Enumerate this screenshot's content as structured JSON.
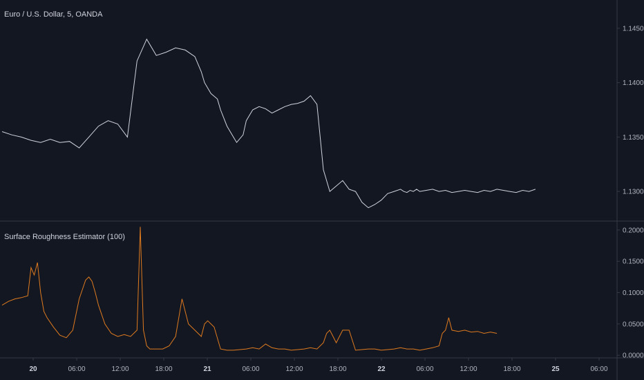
{
  "colors": {
    "background": "#131722",
    "price_line": "#d1d4dc",
    "indicator_line": "#e07b1f",
    "divider": "#363a45",
    "axis_text": "#b2b5be"
  },
  "chart_data": [
    {
      "type": "line",
      "title": "Euro / U.S. Dollar, 5, OANDA",
      "series": [
        {
          "x": [
            0,
            3,
            6,
            9,
            12,
            15,
            18,
            21,
            24,
            27,
            30,
            33,
            36,
            39,
            42,
            45,
            48,
            51,
            54,
            57,
            60,
            62,
            63,
            65,
            67,
            68,
            70,
            72,
            73,
            75,
            76,
            78,
            80,
            82,
            84,
            86,
            88,
            90,
            92,
            94,
            96,
            98,
            100,
            102,
            104,
            106,
            108,
            110,
            111,
            112,
            114,
            116,
            118,
            120,
            122,
            124,
            125,
            126,
            127,
            128,
            129,
            130,
            132,
            134,
            136,
            138,
            140,
            142,
            144,
            146,
            148,
            150,
            152,
            154,
            156,
            158,
            160,
            162,
            164,
            166
          ],
          "values": [
            1.1355,
            1.1352,
            1.135,
            1.1347,
            1.1345,
            1.1348,
            1.1345,
            1.1346,
            1.134,
            1.135,
            1.136,
            1.1365,
            1.1362,
            1.135,
            1.142,
            1.144,
            1.1425,
            1.1428,
            1.1432,
            1.143,
            1.1424,
            1.141,
            1.14,
            1.139,
            1.1385,
            1.1375,
            1.136,
            1.135,
            1.1345,
            1.1352,
            1.1365,
            1.1375,
            1.1378,
            1.1376,
            1.1372,
            1.1375,
            1.1378,
            1.138,
            1.1381,
            1.1383,
            1.1388,
            1.138,
            1.132,
            1.13,
            1.1305,
            1.131,
            1.1302,
            1.13,
            1.1295,
            1.129,
            1.1285,
            1.1288,
            1.1292,
            1.1298,
            1.13,
            1.1302,
            1.13,
            1.1299,
            1.1301,
            1.13,
            1.1302,
            1.13,
            1.1301,
            1.1302,
            1.13,
            1.1301,
            1.1299,
            1.13,
            1.1301,
            1.13,
            1.1299,
            1.1301,
            1.13,
            1.1302,
            1.1301,
            1.13,
            1.1299,
            1.1301,
            1.13,
            1.1302
          ]
        }
      ],
      "yticks": [
        "1.14500",
        "1.14000",
        "1.13500",
        "1.13000"
      ],
      "ytick_values": [
        1.145,
        1.14,
        1.135,
        1.13
      ],
      "ylim": [
        1.1274,
        1.1476
      ],
      "grid": false
    },
    {
      "type": "line",
      "title": "Surface Roughness Estimator (100)",
      "series": [
        {
          "x": [
            0,
            2,
            4,
            6,
            8,
            9,
            10,
            11,
            12,
            13,
            14,
            16,
            18,
            20,
            22,
            24,
            26,
            27,
            28,
            29,
            30,
            32,
            34,
            36,
            38,
            40,
            42,
            43,
            44,
            45,
            46,
            48,
            50,
            52,
            54,
            56,
            58,
            60,
            61,
            62,
            63,
            64,
            66,
            68,
            70,
            72,
            74,
            76,
            78,
            80,
            82,
            84,
            86,
            88,
            90,
            92,
            94,
            96,
            98,
            100,
            101,
            102,
            103,
            104,
            106,
            108,
            110,
            112,
            114,
            116,
            118,
            120,
            122,
            124,
            126,
            128,
            130,
            132,
            134,
            136,
            137,
            138,
            139,
            140,
            142,
            144,
            146,
            148,
            150,
            152,
            154
          ],
          "values": [
            0.08,
            0.086,
            0.09,
            0.092,
            0.095,
            0.14,
            0.128,
            0.148,
            0.1,
            0.07,
            0.06,
            0.045,
            0.032,
            0.028,
            0.04,
            0.09,
            0.12,
            0.125,
            0.118,
            0.1,
            0.08,
            0.05,
            0.035,
            0.03,
            0.033,
            0.03,
            0.04,
            0.205,
            0.04,
            0.015,
            0.01,
            0.01,
            0.01,
            0.015,
            0.03,
            0.09,
            0.05,
            0.04,
            0.035,
            0.03,
            0.05,
            0.055,
            0.045,
            0.01,
            0.008,
            0.008,
            0.009,
            0.01,
            0.012,
            0.01,
            0.018,
            0.012,
            0.01,
            0.01,
            0.008,
            0.009,
            0.01,
            0.012,
            0.01,
            0.02,
            0.035,
            0.04,
            0.03,
            0.02,
            0.04,
            0.04,
            0.008,
            0.009,
            0.01,
            0.01,
            0.008,
            0.009,
            0.01,
            0.012,
            0.01,
            0.01,
            0.008,
            0.01,
            0.012,
            0.015,
            0.035,
            0.04,
            0.06,
            0.04,
            0.038,
            0.04,
            0.037,
            0.038,
            0.035,
            0.037,
            0.035
          ]
        }
      ],
      "yticks": [
        "0.2000",
        "0.1500",
        "0.1000",
        "0.0500",
        "0.0000"
      ],
      "ytick_values": [
        0.2,
        0.15,
        0.1,
        0.05,
        0.0
      ],
      "ylim": [
        -0.002,
        0.212
      ],
      "grid": false
    }
  ],
  "xaxis": {
    "ticks": [
      {
        "label": "20",
        "bold": true
      },
      {
        "label": "06:00",
        "bold": false
      },
      {
        "label": "12:00",
        "bold": false
      },
      {
        "label": "18:00",
        "bold": false
      },
      {
        "label": "21",
        "bold": true
      },
      {
        "label": "06:00",
        "bold": false
      },
      {
        "label": "12:00",
        "bold": false
      },
      {
        "label": "18:00",
        "bold": false
      },
      {
        "label": "22",
        "bold": true
      },
      {
        "label": "06:00",
        "bold": false
      },
      {
        "label": "12:00",
        "bold": false
      },
      {
        "label": "18:00",
        "bold": false
      },
      {
        "label": "25",
        "bold": true
      },
      {
        "label": "06:00",
        "bold": false
      }
    ]
  }
}
